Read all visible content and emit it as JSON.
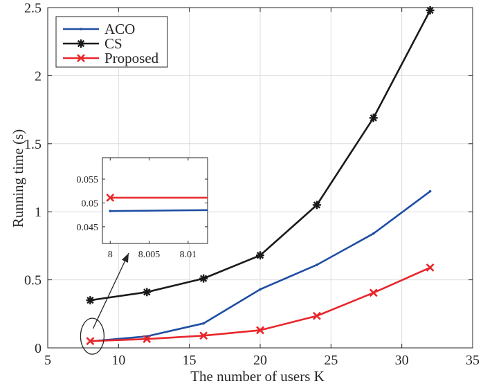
{
  "chart_data": {
    "type": "line",
    "xlabel": "The number of users K",
    "ylabel": "Running time (s)",
    "xlim": [
      5,
      35
    ],
    "ylim": [
      0,
      2.5
    ],
    "xticks": [
      5,
      10,
      15,
      20,
      25,
      30,
      35
    ],
    "xtick_labels": [
      "5",
      "10",
      "15",
      "20",
      "25",
      "30",
      "35"
    ],
    "yticks": [
      0,
      0.5,
      1,
      1.5,
      2,
      2.5
    ],
    "ytick_labels": [
      "0",
      "0.5",
      "1",
      "1.5",
      "2",
      "2.5"
    ],
    "grid": true,
    "legend_position": "top-left",
    "x": [
      8,
      12,
      16,
      20,
      24,
      28,
      32
    ],
    "series": [
      {
        "name": "ACO",
        "color": "#1f4ea3",
        "marker": "dot",
        "values": [
          0.048,
          0.085,
          0.18,
          0.43,
          0.61,
          0.84,
          1.15
        ]
      },
      {
        "name": "CS",
        "color": "#1a1a1a",
        "marker": "asterisk",
        "values": [
          0.35,
          0.41,
          0.51,
          0.68,
          1.05,
          1.69,
          2.48
        ]
      },
      {
        "name": "Proposed",
        "color": "#e8262b",
        "marker": "x",
        "values": [
          0.05,
          0.065,
          0.09,
          0.13,
          0.235,
          0.405,
          0.59
        ]
      }
    ],
    "inset": {
      "xlim": [
        7.999,
        8.0125
      ],
      "ylim": [
        0.0415,
        0.0595
      ],
      "xticks": [
        8,
        8.005,
        8.01
      ],
      "xtick_labels": [
        "8",
        "8.005",
        "8.01"
      ],
      "yticks": [
        0.045,
        0.05,
        0.055
      ],
      "ytick_labels": [
        "0.045",
        "0.05",
        "0.055"
      ],
      "series": [
        {
          "name": "ACO",
          "color": "#1f4ea3",
          "x": [
            8,
            8.0125
          ],
          "values": [
            0.0483,
            0.0485
          ]
        },
        {
          "name": "Proposed",
          "color": "#e8262b",
          "x": [
            8,
            8.0125
          ],
          "values": [
            0.0511,
            0.0511
          ],
          "marker_at": [
            8,
            0.0511
          ]
        }
      ]
    },
    "annotation": {
      "type": "zoom-callout",
      "circle_center": [
        8,
        0.05
      ],
      "arrow_to_inset": true
    }
  }
}
